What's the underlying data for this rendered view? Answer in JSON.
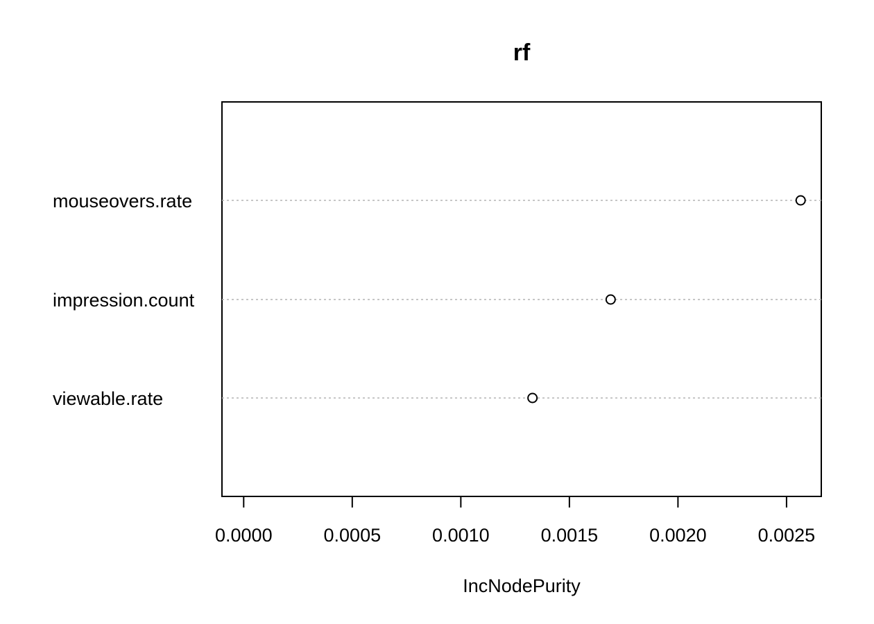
{
  "chart_data": {
    "type": "scatter",
    "title": "rf",
    "xlabel": "IncNodePurity",
    "ylabel": "",
    "categories": [
      "mouseovers.rate",
      "impression.count",
      "viewable.rate"
    ],
    "values": [
      0.002565,
      0.00169,
      0.00133
    ],
    "xlim": [
      -0.0001,
      0.00266
    ],
    "xticks": [
      0.0,
      0.0005,
      0.001,
      0.0015,
      0.002,
      0.0025
    ],
    "xtick_labels": [
      "0.0000",
      "0.0005",
      "0.0010",
      "0.0015",
      "0.0020",
      "0.0025"
    ],
    "grid": "horizontal dotted lines per category",
    "legend": "none",
    "marker": "open-circle",
    "colors": {
      "marker_stroke": "#000000",
      "gridline": "#b3b3b3",
      "axis": "#000000",
      "background": "#ffffff"
    }
  }
}
